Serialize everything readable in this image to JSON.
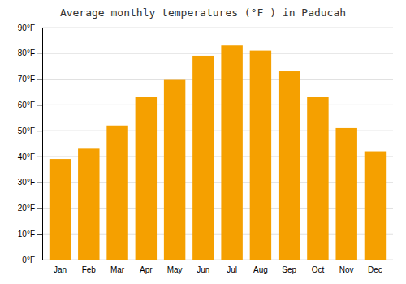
{
  "chart_data": {
    "type": "bar",
    "title": "Average monthly temperatures (°F ) in Paducah",
    "categories": [
      "Jan",
      "Feb",
      "Mar",
      "Apr",
      "May",
      "Jun",
      "Jul",
      "Aug",
      "Sep",
      "Oct",
      "Nov",
      "Dec"
    ],
    "values": [
      39,
      43,
      52,
      63,
      70,
      79,
      83,
      81,
      73,
      63,
      51,
      42
    ],
    "color": "#F5A000",
    "ylim": [
      0,
      90
    ],
    "yticks": [
      {
        "value": 0,
        "label": "0°F"
      },
      {
        "value": 10,
        "label": "10°F"
      },
      {
        "value": 20,
        "label": "20°F"
      },
      {
        "value": 30,
        "label": "30°F"
      },
      {
        "value": 40,
        "label": "40°F"
      },
      {
        "value": 50,
        "label": "50°F"
      },
      {
        "value": 60,
        "label": "60°F"
      },
      {
        "value": 70,
        "label": "70°F"
      },
      {
        "value": 80,
        "label": "80°F"
      },
      {
        "value": 90,
        "label": "90°F"
      }
    ],
    "grid": true
  }
}
